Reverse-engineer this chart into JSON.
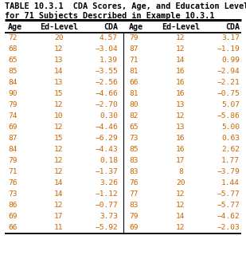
{
  "title_line1": "TABLE 10.3.1  CDA Scores, Age, and Education Level",
  "title_line2": "for 71 Subjects Described in Example 10.3.1",
  "headers": [
    "Age",
    "Ed-Level",
    "CDA",
    "Age",
    "Ed-Level",
    "CDA"
  ],
  "rows_left": [
    [
      "72",
      "20",
      "4.57"
    ],
    [
      "68",
      "12",
      "−3.04"
    ],
    [
      "65",
      "13",
      "1.39"
    ],
    [
      "85",
      "14",
      "−3.55"
    ],
    [
      "84",
      "13",
      "−2.56"
    ],
    [
      "90",
      "15",
      "−4.66"
    ],
    [
      "79",
      "12",
      "−2.70"
    ],
    [
      "74",
      "10",
      "0.30"
    ],
    [
      "69",
      "12",
      "−4.46"
    ],
    [
      "87",
      "15",
      "−6.29"
    ],
    [
      "84",
      "12",
      "−4.43"
    ],
    [
      "79",
      "12",
      "0.18"
    ],
    [
      "71",
      "12",
      "−1.37"
    ],
    [
      "76",
      "14",
      "3.26"
    ],
    [
      "73",
      "14",
      "−1.12"
    ],
    [
      "86",
      "12",
      "−0.77"
    ],
    [
      "69",
      "17",
      "3.73"
    ],
    [
      "66",
      "11",
      "−5.92"
    ]
  ],
  "rows_right": [
    [
      "79",
      "12",
      "3.17"
    ],
    [
      "87",
      "12",
      "−1.19"
    ],
    [
      "71",
      "14",
      "0.99"
    ],
    [
      "81",
      "16",
      "−2.94"
    ],
    [
      "66",
      "16",
      "−2.21"
    ],
    [
      "81",
      "16",
      "−0.75"
    ],
    [
      "80",
      "13",
      "5.07"
    ],
    [
      "82",
      "12",
      "−5.86"
    ],
    [
      "65",
      "13",
      "5.00"
    ],
    [
      "73",
      "16",
      "0.63"
    ],
    [
      "85",
      "16",
      "2.62"
    ],
    [
      "83",
      "17",
      "1.77"
    ],
    [
      "83",
      "8",
      "−3.79"
    ],
    [
      "76",
      "20",
      "1.44"
    ],
    [
      "77",
      "12",
      "−5.77"
    ],
    [
      "83",
      "12",
      "−5.77"
    ],
    [
      "79",
      "14",
      "−4.62"
    ],
    [
      "69",
      "12",
      "−2.03"
    ]
  ],
  "bg_color": "#ffffff",
  "header_color": "#000000",
  "data_color": "#cc6600",
  "title_color": "#000000",
  "font_size": 6.8,
  "header_font_size": 7.2,
  "title_font_size": 7.4
}
